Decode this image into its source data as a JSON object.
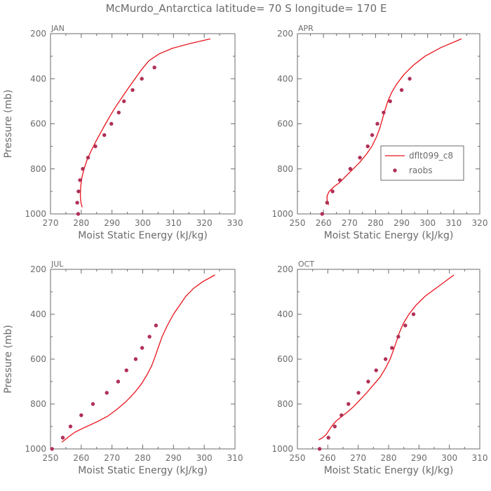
{
  "figure": {
    "title": "McMurdo_Antarctica   latitude= 70 S longitude= 170 E",
    "colors": {
      "model": "#e8141c",
      "raobs": "#b03056",
      "axis": "#6b6b6b"
    },
    "legend": {
      "panel": "APR",
      "placement": "center-right",
      "model_label": "dflt099_c8",
      "obs_label": "raobs"
    }
  },
  "chart_data": [
    {
      "type": "line",
      "panel": "JAN",
      "xlabel": "Moist Static Energy (kJ/kg)",
      "ylabel": "Pressure (mb)",
      "xlim": [
        270,
        330
      ],
      "ylim": [
        1000,
        200
      ],
      "xticks": [
        270,
        280,
        290,
        300,
        310,
        320,
        330
      ],
      "yticks": [
        1000,
        800,
        600,
        400,
        200
      ],
      "series": [
        {
          "name": "dflt099_c8",
          "style": "line",
          "points": [
            [
              280.3,
              970
            ],
            [
              279.9,
              950
            ],
            [
              279.7,
              920
            ],
            [
              279.8,
              880
            ],
            [
              280.2,
              840
            ],
            [
              280.9,
              800
            ],
            [
              281.9,
              760
            ],
            [
              283.2,
              720
            ],
            [
              284.7,
              680
            ],
            [
              286.3,
              640
            ],
            [
              287.9,
              600
            ],
            [
              289.6,
              560
            ],
            [
              291.4,
              520
            ],
            [
              293.4,
              480
            ],
            [
              295.4,
              440
            ],
            [
              297.5,
              400
            ],
            [
              299.6,
              360
            ],
            [
              302.0,
              320
            ],
            [
              305.3,
              290
            ],
            [
              309.6,
              265
            ],
            [
              315.0,
              245
            ],
            [
              322.0,
              223
            ]
          ]
        },
        {
          "name": "raobs",
          "style": "scatter",
          "points": [
            [
              279.0,
              1000
            ],
            [
              278.7,
              950
            ],
            [
              279.1,
              900
            ],
            [
              279.6,
              850
            ],
            [
              280.5,
              800
            ],
            [
              282.2,
              750
            ],
            [
              284.6,
              700
            ],
            [
              287.5,
              650
            ],
            [
              289.8,
              600
            ],
            [
              292.2,
              550
            ],
            [
              293.9,
              500
            ],
            [
              296.7,
              450
            ],
            [
              299.7,
              400
            ],
            [
              303.8,
              350
            ]
          ]
        }
      ]
    },
    {
      "type": "line",
      "panel": "APR",
      "xlabel": "Moist Static Energy (kJ/kg)",
      "ylabel": "",
      "xlim": [
        250,
        320
      ],
      "ylim": [
        1000,
        200
      ],
      "xticks": [
        250,
        260,
        270,
        280,
        290,
        300,
        310,
        320
      ],
      "yticks": [
        1000,
        800,
        600,
        400,
        200
      ],
      "series": [
        {
          "name": "dflt099_c8",
          "style": "line",
          "points": [
            [
              262.0,
              960
            ],
            [
              261.4,
              940
            ],
            [
              261.4,
              920
            ],
            [
              262.2,
              900
            ],
            [
              264.0,
              880
            ],
            [
              266.3,
              860
            ],
            [
              268.8,
              830
            ],
            [
              271.4,
              800
            ],
            [
              274.0,
              770
            ],
            [
              276.5,
              735
            ],
            [
              278.6,
              700
            ],
            [
              280.3,
              660
            ],
            [
              281.6,
              620
            ],
            [
              282.6,
              580
            ],
            [
              283.6,
              540
            ],
            [
              284.7,
              500
            ],
            [
              286.2,
              460
            ],
            [
              288.3,
              420
            ],
            [
              291.0,
              380
            ],
            [
              294.5,
              340
            ],
            [
              299.0,
              300
            ],
            [
              305.0,
              262
            ],
            [
              313.0,
              223
            ]
          ]
        },
        {
          "name": "raobs",
          "style": "scatter",
          "points": [
            [
              259.5,
              1000
            ],
            [
              261.4,
              950
            ],
            [
              263.5,
              900
            ],
            [
              266.3,
              850
            ],
            [
              270.3,
              800
            ],
            [
              274.0,
              750
            ],
            [
              277.0,
              700
            ],
            [
              278.7,
              650
            ],
            [
              280.7,
              600
            ],
            [
              283.1,
              550
            ],
            [
              285.6,
              500
            ],
            [
              290.0,
              450
            ],
            [
              293.1,
              400
            ]
          ]
        }
      ]
    },
    {
      "type": "line",
      "panel": "JUL",
      "xlabel": "Moist Static Energy (kJ/kg)",
      "ylabel": "Pressure (mb)",
      "xlim": [
        250,
        310
      ],
      "ylim": [
        1000,
        200
      ],
      "xticks": [
        250,
        260,
        270,
        280,
        290,
        300,
        310
      ],
      "yticks": [
        1000,
        800,
        600,
        400,
        200
      ],
      "series": [
        {
          "name": "dflt099_c8",
          "style": "line",
          "points": [
            [
              253.7,
              970
            ],
            [
              254.6,
              960
            ],
            [
              256.0,
              945
            ],
            [
              258.0,
              925
            ],
            [
              261.0,
              905
            ],
            [
              265.0,
              880
            ],
            [
              268.5,
              855
            ],
            [
              271.5,
              825
            ],
            [
              274.5,
              790
            ],
            [
              277.3,
              750
            ],
            [
              279.6,
              710
            ],
            [
              281.4,
              670
            ],
            [
              282.9,
              630
            ],
            [
              284.0,
              590
            ],
            [
              285.0,
              550
            ],
            [
              286.3,
              500
            ],
            [
              288.0,
              450
            ],
            [
              290.0,
              400
            ],
            [
              292.0,
              360
            ],
            [
              294.0,
              320
            ],
            [
              296.5,
              285
            ],
            [
              299.5,
              255
            ],
            [
              303.5,
              225
            ]
          ]
        },
        {
          "name": "raobs",
          "style": "scatter",
          "points": [
            [
              250.5,
              1000
            ],
            [
              254.0,
              950
            ],
            [
              256.5,
              900
            ],
            [
              260.0,
              850
            ],
            [
              263.8,
              800
            ],
            [
              268.3,
              750
            ],
            [
              272.0,
              700
            ],
            [
              274.7,
              650
            ],
            [
              277.7,
              600
            ],
            [
              279.8,
              550
            ],
            [
              282.2,
              500
            ],
            [
              284.3,
              450
            ]
          ]
        }
      ]
    },
    {
      "type": "line",
      "panel": "OCT",
      "xlabel": "Moist Static Energy (kJ/kg)",
      "ylabel": "",
      "xlim": [
        250,
        310
      ],
      "ylim": [
        1000,
        200
      ],
      "xticks": [
        250,
        260,
        270,
        280,
        290,
        300,
        310
      ],
      "yticks": [
        1000,
        800,
        600,
        400,
        200
      ],
      "series": [
        {
          "name": "dflt099_c8",
          "style": "line",
          "points": [
            [
              257.0,
              960
            ],
            [
              258.3,
              950
            ],
            [
              259.5,
              935
            ],
            [
              260.5,
              915
            ],
            [
              261.5,
              895
            ],
            [
              262.8,
              875
            ],
            [
              264.6,
              855
            ],
            [
              266.5,
              835
            ],
            [
              268.6,
              810
            ],
            [
              270.7,
              780
            ],
            [
              272.8,
              750
            ],
            [
              275.0,
              715
            ],
            [
              277.2,
              680
            ],
            [
              279.0,
              640
            ],
            [
              280.5,
              600
            ],
            [
              281.6,
              560
            ],
            [
              282.6,
              520
            ],
            [
              283.6,
              480
            ],
            [
              284.9,
              440
            ],
            [
              286.7,
              400
            ],
            [
              289.0,
              360
            ],
            [
              292.0,
              320
            ],
            [
              296.0,
              280
            ],
            [
              301.5,
              225
            ]
          ]
        },
        {
          "name": "raobs",
          "style": "scatter",
          "points": [
            [
              257.3,
              1000
            ],
            [
              260.2,
              950
            ],
            [
              262.3,
              900
            ],
            [
              264.5,
              850
            ],
            [
              266.8,
              800
            ],
            [
              270.1,
              750
            ],
            [
              273.3,
              700
            ],
            [
              275.9,
              650
            ],
            [
              279.0,
              600
            ],
            [
              281.1,
              550
            ],
            [
              283.2,
              500
            ],
            [
              285.5,
              450
            ],
            [
              288.2,
              400
            ]
          ]
        }
      ]
    }
  ]
}
